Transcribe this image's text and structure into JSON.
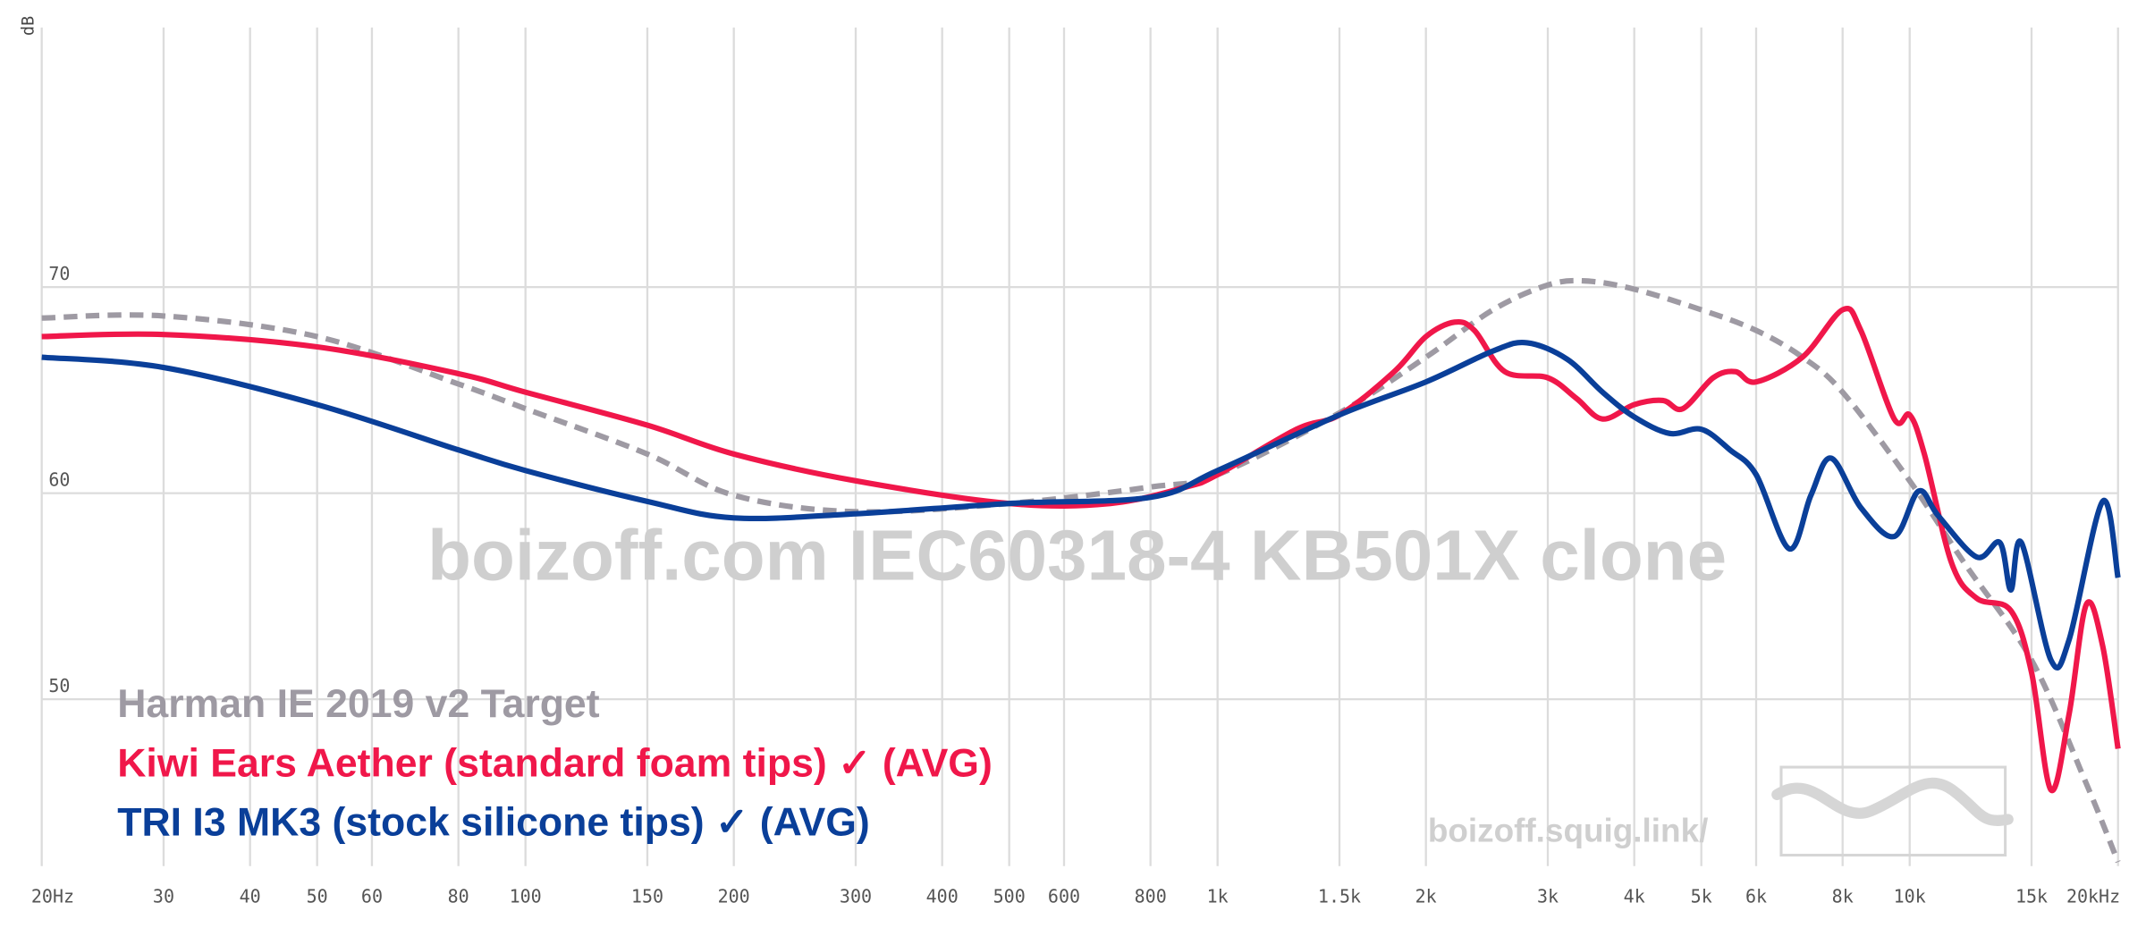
{
  "chart_data": {
    "type": "line",
    "y_label": "dB",
    "watermark": "boizoff.com IEC60318-4 KB501X clone",
    "site": "boizoff.squig.link/",
    "log_x": true,
    "grid": true,
    "legend_position": "lower-left",
    "xlim": [
      20,
      20000
    ],
    "ylim": [
      41.9,
      82.6
    ],
    "xticks": [
      {
        "value": 20,
        "label": "20Hz"
      },
      30,
      40,
      50,
      60,
      80,
      100,
      150,
      200,
      300,
      400,
      500,
      600,
      800,
      {
        "value": 1000,
        "label": "1k"
      },
      {
        "value": 1500,
        "label": "1.5k"
      },
      {
        "value": 2000,
        "label": "2k"
      },
      {
        "value": 3000,
        "label": "3k"
      },
      {
        "value": 4000,
        "label": "4k"
      },
      {
        "value": 5000,
        "label": "5k"
      },
      {
        "value": 6000,
        "label": "6k"
      },
      {
        "value": 8000,
        "label": "8k"
      },
      {
        "value": 10000,
        "label": "10k"
      },
      {
        "value": 15000,
        "label": "15k"
      },
      {
        "value": 20000,
        "label": "20kHz"
      }
    ],
    "yticks": [
      50,
      60,
      70
    ],
    "series": [
      {
        "name": "Harman IE 2019 v2 Target",
        "color": "#9e9aa3",
        "dashed": true,
        "x": [
          20,
          30,
          50,
          80,
          100,
          150,
          200,
          300,
          500,
          800,
          1000,
          1500,
          2000,
          2500,
          3000,
          3400,
          4000,
          5000,
          6000,
          7000,
          8000,
          10000,
          12000,
          15000,
          18000,
          20000
        ],
        "values": [
          68.5,
          68.6,
          67.6,
          65.3,
          64.1,
          61.9,
          59.9,
          59.1,
          59.5,
          60.3,
          60.9,
          63.9,
          66.6,
          68.9,
          70.1,
          70.3,
          69.9,
          68.9,
          67.9,
          66.6,
          64.9,
          60.6,
          56.6,
          51.9,
          45.9,
          42.1
        ]
      },
      {
        "name": "Kiwi Ears Aether (standard foam tips) ✓ (AVG)",
        "color": "#f0174a",
        "dashed": false,
        "x": [
          20,
          30,
          50,
          80,
          100,
          150,
          200,
          300,
          500,
          700,
          900,
          1000,
          1300,
          1500,
          1800,
          2000,
          2200,
          2350,
          2600,
          3000,
          3300,
          3600,
          4000,
          4400,
          4700,
          5200,
          5600,
          6000,
          7000,
          8000,
          8500,
          9500,
          10000,
          10500,
          11500,
          12500,
          14000,
          15000,
          16000,
          17000,
          18000,
          19000,
          20000
        ],
        "values": [
          67.6,
          67.7,
          67.1,
          65.8,
          64.9,
          63.3,
          61.9,
          60.6,
          59.5,
          59.5,
          60.3,
          60.9,
          63.1,
          63.8,
          65.9,
          67.6,
          68.3,
          67.9,
          65.9,
          65.6,
          64.6,
          63.6,
          64.3,
          64.5,
          64.1,
          65.6,
          65.9,
          65.4,
          66.6,
          68.9,
          67.9,
          63.6,
          63.8,
          61.9,
          56.6,
          54.9,
          54.3,
          51.3,
          45.6,
          49.3,
          54.6,
          52.6,
          47.6
        ]
      },
      {
        "name": "TRI I3 MK3 (stock silicone tips) ✓ (AVG)",
        "color": "#0a3f99",
        "dashed": false,
        "x": [
          20,
          30,
          50,
          80,
          100,
          150,
          200,
          300,
          500,
          800,
          1000,
          1500,
          2000,
          2500,
          2800,
          3200,
          3600,
          4000,
          4500,
          5000,
          5500,
          6000,
          6700,
          7200,
          7700,
          8500,
          9500,
          10300,
          11000,
          12500,
          13500,
          14000,
          14500,
          16000,
          17000,
          19000,
          20000
        ],
        "values": [
          66.6,
          66.1,
          64.3,
          62.1,
          61.1,
          59.6,
          58.8,
          59.0,
          59.5,
          59.8,
          61.1,
          63.8,
          65.4,
          66.9,
          67.3,
          66.5,
          64.9,
          63.7,
          62.9,
          63.1,
          62.1,
          60.9,
          57.3,
          59.9,
          61.7,
          59.3,
          57.9,
          60.1,
          58.9,
          56.9,
          57.6,
          55.3,
          57.6,
          51.9,
          52.9,
          59.6,
          55.9
        ]
      }
    ]
  }
}
